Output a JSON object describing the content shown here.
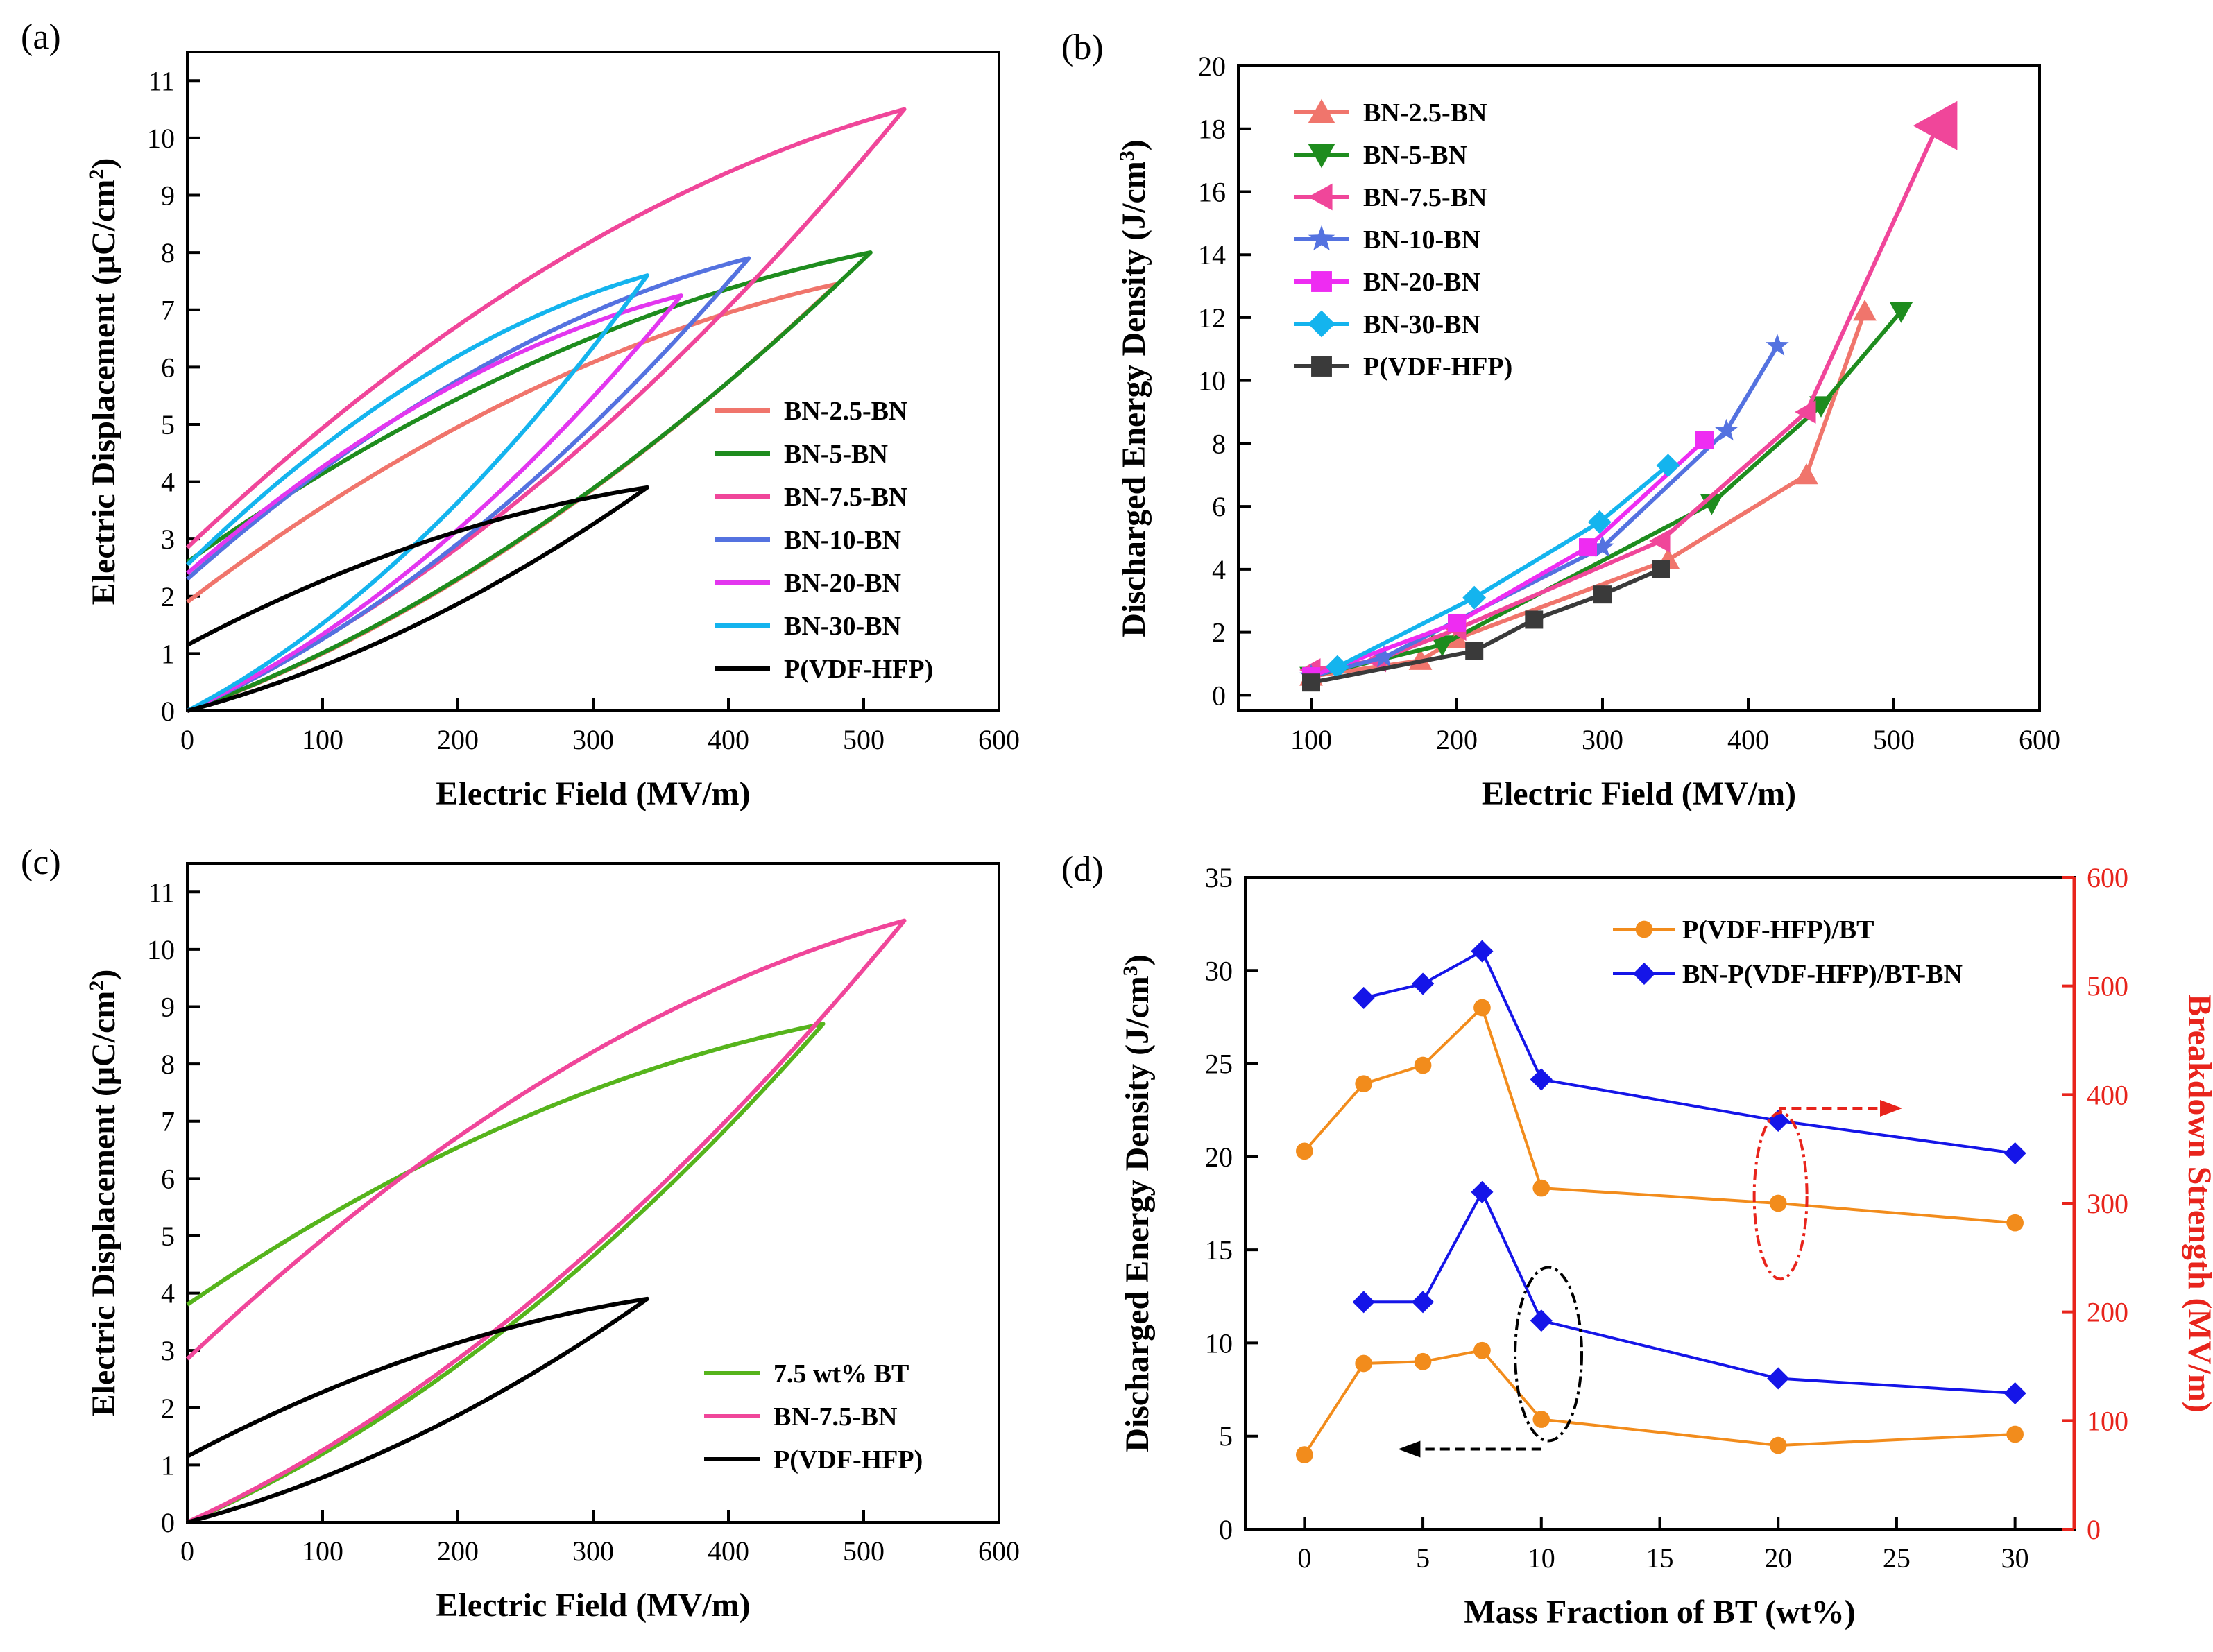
{
  "chart_data": [
    {
      "panel": "(a)",
      "type": "line",
      "xlabel": "Electric Field (MV/m)",
      "ylabel": "Electric Displacement (μC/cm²)",
      "ylabel_main": "Electric Displacement (μC/cm",
      "ylabel_sup": "2",
      "ylabel_end": ")",
      "xlim": [
        0,
        600
      ],
      "ylim": [
        0,
        11.5
      ],
      "xticks": [
        0,
        100,
        200,
        300,
        400,
        500,
        600
      ],
      "yticks": [
        0,
        1,
        2,
        3,
        4,
        5,
        6,
        7,
        8,
        9,
        10,
        11
      ],
      "legend_position": "bottom-right",
      "series": [
        {
          "name": "BN-2.5-BN",
          "color": "#f0756c",
          "Emax": 480,
          "Dmax": 7.45,
          "Dr": 1.9
        },
        {
          "name": "BN-5-BN",
          "color": "#1e8c1e",
          "Emax": 505,
          "Dmax": 8.0,
          "Dr": 2.6
        },
        {
          "name": "BN-7.5-BN",
          "color": "#f0469a",
          "Emax": 530,
          "Dmax": 10.5,
          "Dr": 2.85
        },
        {
          "name": "BN-10-BN",
          "color": "#5472e0",
          "Emax": 415,
          "Dmax": 7.9,
          "Dr": 2.3
        },
        {
          "name": "BN-20-BN",
          "color": "#e336ef",
          "Emax": 365,
          "Dmax": 7.25,
          "Dr": 2.4
        },
        {
          "name": "BN-30-BN",
          "color": "#14b4ee",
          "Emax": 340,
          "Dmax": 7.6,
          "Dr": 2.55
        },
        {
          "name": "P(VDF-HFP)",
          "color": "#000000",
          "Emax": 340,
          "Dmax": 3.9,
          "Dr": 1.15
        }
      ]
    },
    {
      "panel": "(b)",
      "type": "line",
      "xlabel": "Electric Field (MV/m)",
      "ylabel": "Discharged Energy Density (J/cm³)",
      "ylabel_main": "Discharged Energy Density (J/cm",
      "ylabel_sup": "3",
      "ylabel_end": ")",
      "xlim": [
        50,
        600
      ],
      "ylim": [
        -0.5,
        20
      ],
      "xticks": [
        100,
        200,
        300,
        400,
        500,
        600
      ],
      "yticks": [
        0,
        2,
        4,
        6,
        8,
        10,
        12,
        14,
        16,
        18,
        20
      ],
      "legend_position": "top-left",
      "series": [
        {
          "name": "BN-2.5-BN",
          "color": "#f0756c",
          "marker": "triangle-up",
          "x": [
            100,
            175,
            200,
            345,
            440,
            480
          ],
          "y": [
            0.6,
            1.1,
            1.8,
            4.3,
            7.0,
            12.2
          ]
        },
        {
          "name": "BN-5-BN",
          "color": "#1e8c1e",
          "marker": "triangle-down",
          "x": [
            100,
            190,
            375,
            450,
            505
          ],
          "y": [
            0.6,
            1.6,
            6.1,
            9.2,
            12.2
          ]
        },
        {
          "name": "BN-7.5-BN",
          "color": "#f0469a",
          "marker": "triangle-left",
          "x": [
            100,
            145,
            200,
            340,
            440,
            530
          ],
          "y": [
            0.8,
            1.1,
            2.1,
            4.9,
            9.0,
            18.1
          ]
        },
        {
          "name": "BN-10-BN",
          "color": "#5472e0",
          "marker": "star",
          "x": [
            100,
            150,
            300,
            385,
            420
          ],
          "y": [
            0.6,
            1.2,
            4.7,
            8.4,
            11.1
          ]
        },
        {
          "name": "BN-20-BN",
          "color": "#ee2cf2",
          "marker": "square",
          "x": [
            100,
            200,
            290,
            370
          ],
          "y": [
            0.6,
            2.3,
            4.7,
            8.1
          ]
        },
        {
          "name": "BN-30-BN",
          "color": "#14b4ee",
          "marker": "diamond",
          "x": [
            118,
            212,
            298,
            345
          ],
          "y": [
            0.9,
            3.1,
            5.5,
            7.3
          ]
        },
        {
          "name": "P(VDF-HFP)",
          "color": "#3a3a3a",
          "marker": "square",
          "x": [
            100,
            212,
            253,
            300,
            340
          ],
          "y": [
            0.4,
            1.4,
            2.4,
            3.2,
            4.0
          ]
        }
      ]
    },
    {
      "panel": "(c)",
      "type": "line",
      "xlabel": "Electric Field (MV/m)",
      "ylabel": "Electric Displacement (μC/cm²)",
      "ylabel_main": "Electric Displacement (μC/cm",
      "ylabel_sup": "2",
      "ylabel_end": ")",
      "xlim": [
        0,
        600
      ],
      "ylim": [
        0,
        11.5
      ],
      "xticks": [
        0,
        100,
        200,
        300,
        400,
        500,
        600
      ],
      "yticks": [
        0,
        1,
        2,
        3,
        4,
        5,
        6,
        7,
        8,
        9,
        10,
        11
      ],
      "legend_position": "bottom-right",
      "series": [
        {
          "name": "7.5 wt% BT",
          "color": "#56b41c",
          "Emax": 470,
          "Dmax": 8.7,
          "Dr": 3.8
        },
        {
          "name": "BN-7.5-BN",
          "color": "#f0469a",
          "Emax": 530,
          "Dmax": 10.5,
          "Dr": 2.85
        },
        {
          "name": "P(VDF-HFP)",
          "color": "#000000",
          "Emax": 340,
          "Dmax": 3.9,
          "Dr": 1.15
        }
      ]
    },
    {
      "panel": "(d)",
      "type": "line",
      "xlabel": "Mass Fraction of BT (wt%)",
      "ylabel": "Discharged Energy Density (J/cm³)",
      "ylabel_main": "Discharged Energy Density (J/cm",
      "ylabel_sup": "3",
      "ylabel_end": ")",
      "ylabel_right": "Breakdown Strength (MV/m)",
      "xlim": [
        -2.5,
        32.5
      ],
      "ylim": [
        0,
        35
      ],
      "ylim_right": [
        0,
        600
      ],
      "xticks": [
        0,
        5,
        10,
        15,
        20,
        25,
        30
      ],
      "yticks": [
        0,
        5,
        10,
        15,
        20,
        25,
        30,
        35
      ],
      "yticks_right": [
        0,
        100,
        200,
        300,
        400,
        500,
        600
      ],
      "legend_position": "top-right",
      "series": [
        {
          "name": "P(VDF-HFP)/BT",
          "color": "#f28c1c",
          "marker": "circle",
          "axis": "left",
          "x": [
            0,
            2.5,
            5,
            7.5,
            10,
            20,
            30
          ],
          "y": [
            4.0,
            8.9,
            9.0,
            9.6,
            5.9,
            4.5,
            5.1
          ]
        },
        {
          "name": "BN-P(VDF-HFP)/BT-BN",
          "color": "#1515e8",
          "marker": "diamond",
          "axis": "left",
          "x": [
            2.5,
            5,
            7.5,
            10,
            20,
            30
          ],
          "y": [
            12.2,
            12.2,
            18.1,
            11.2,
            8.1,
            7.3
          ]
        },
        {
          "name": "P(VDF-HFP)/BT breakdown",
          "color": "#f28c1c",
          "marker": "circle",
          "axis": "right",
          "legend": false,
          "x": [
            0,
            2.5,
            5,
            7.5,
            10,
            20,
            30
          ],
          "y": [
            348,
            410,
            427,
            480,
            314,
            300,
            282
          ]
        },
        {
          "name": "BN-P(VDF-HFP)/BT-BN breakdown",
          "color": "#1515e8",
          "marker": "diamond",
          "axis": "right",
          "legend": false,
          "x": [
            2.5,
            5,
            7.5,
            10,
            20,
            30
          ],
          "y": [
            489,
            502,
            532,
            414,
            376,
            346
          ]
        }
      ]
    }
  ]
}
